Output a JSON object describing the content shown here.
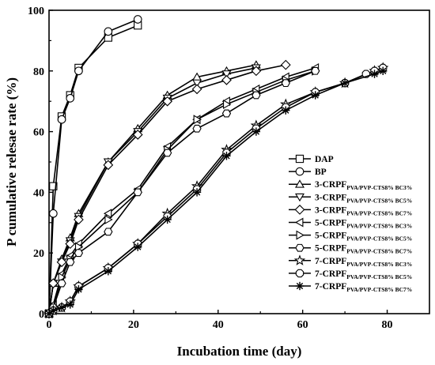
{
  "chart_data": {
    "type": "line",
    "title": "",
    "xlabel": "Incubation time (day)",
    "ylabel": "P cumulative relesae rate (%)",
    "xlim": [
      0,
      90
    ],
    "ylim": [
      0,
      100
    ],
    "xticks": [
      0,
      20,
      40,
      60,
      80
    ],
    "yticks": [
      0,
      20,
      40,
      60,
      80,
      100
    ],
    "grid": false,
    "legend_position": "right",
    "series": [
      {
        "name": "DAP",
        "marker": "square",
        "x": [
          0,
          1,
          3,
          5,
          7,
          14,
          21
        ],
        "y": [
          0,
          42,
          65,
          72,
          81,
          91,
          95
        ]
      },
      {
        "name": "BP",
        "marker": "circle",
        "x": [
          0,
          1,
          3,
          5,
          7,
          14,
          21
        ],
        "y": [
          0,
          33,
          64,
          71,
          80,
          93,
          97
        ]
      },
      {
        "name": "3-CRPF",
        "subscript": "PVA/PVP-CTS8% BC3%",
        "marker": "triangle-up",
        "x": [
          0,
          1,
          3,
          5,
          7,
          14,
          21,
          28,
          35,
          42,
          49
        ],
        "y": [
          0,
          10,
          18,
          25,
          33,
          50,
          61,
          72,
          78,
          80,
          82
        ]
      },
      {
        "name": "3-CRPF",
        "subscript": "PVA/PVP-CTS8% BC5%",
        "marker": "triangle-down",
        "x": [
          0,
          1,
          3,
          5,
          7,
          14,
          21,
          28,
          35,
          42,
          49
        ],
        "y": [
          0,
          10,
          17,
          24,
          32,
          50,
          60,
          71,
          76,
          79,
          81
        ]
      },
      {
        "name": "3-CRPF",
        "subscript": "PVA/PVP-CTS8% BC7%",
        "marker": "diamond",
        "x": [
          0,
          1,
          3,
          5,
          7,
          14,
          21,
          28,
          35,
          42,
          49,
          56
        ],
        "y": [
          0,
          10,
          17,
          23,
          31,
          49,
          59,
          70,
          74,
          77,
          80,
          82
        ]
      },
      {
        "name": "5-CRPF",
        "subscript": "PVA/PVP-CTS8% BC3%",
        "marker": "triangle-left",
        "x": [
          0,
          1,
          3,
          5,
          7,
          14,
          21,
          28,
          35,
          42,
          49,
          56,
          63
        ],
        "y": [
          0,
          3,
          13,
          19,
          23,
          33,
          41,
          55,
          64,
          70,
          74,
          78,
          81
        ]
      },
      {
        "name": "5-CRPF",
        "subscript": "PVA/PVP-CTS8% BC5%",
        "marker": "triangle-right",
        "x": [
          0,
          1,
          3,
          5,
          7,
          14,
          21,
          28,
          35,
          42,
          49,
          56,
          63
        ],
        "y": [
          0,
          2,
          12,
          18,
          22,
          31,
          40,
          54,
          64,
          69,
          73,
          77,
          80
        ]
      },
      {
        "name": "5-CRPF",
        "subscript": "PVA/PVP-CTS8% BC7%",
        "marker": "hexagon",
        "x": [
          0,
          1,
          3,
          5,
          7,
          14,
          21,
          28,
          35,
          42,
          49,
          56,
          63
        ],
        "y": [
          0,
          2,
          10,
          17,
          20,
          27,
          40,
          53,
          61,
          66,
          72,
          76,
          80
        ]
      },
      {
        "name": "7-CRPF",
        "subscript": "PVA/PVP-CTS8% BC3%",
        "marker": "star",
        "x": [
          0,
          1,
          3,
          5,
          7,
          14,
          21,
          28,
          35,
          42,
          49,
          56,
          63,
          70,
          77,
          79
        ],
        "y": [
          0,
          1,
          2,
          4,
          9,
          15,
          23,
          33,
          42,
          54,
          62,
          69,
          73,
          76,
          80,
          81
        ]
      },
      {
        "name": "7-CRPF",
        "subscript": "PVA/PVP-CTS8% BC5%",
        "marker": "octagon",
        "x": [
          0,
          1,
          3,
          5,
          7,
          14,
          21,
          28,
          35,
          42,
          49,
          56,
          63,
          70,
          75,
          77,
          79
        ],
        "y": [
          0,
          1,
          2,
          4,
          9,
          15,
          23,
          32,
          41,
          53,
          61,
          68,
          73,
          76,
          79,
          80,
          81
        ]
      },
      {
        "name": "7-CRPF",
        "subscript": "PVA/PVP-CTS8% BC7%",
        "marker": "asterisk",
        "x": [
          0,
          1,
          3,
          5,
          7,
          14,
          21,
          28,
          35,
          42,
          49,
          56,
          63,
          70,
          77,
          79
        ],
        "y": [
          0,
          1,
          2,
          3,
          8,
          14,
          22,
          31,
          40,
          52,
          60,
          67,
          72,
          76,
          79,
          80
        ]
      }
    ]
  }
}
